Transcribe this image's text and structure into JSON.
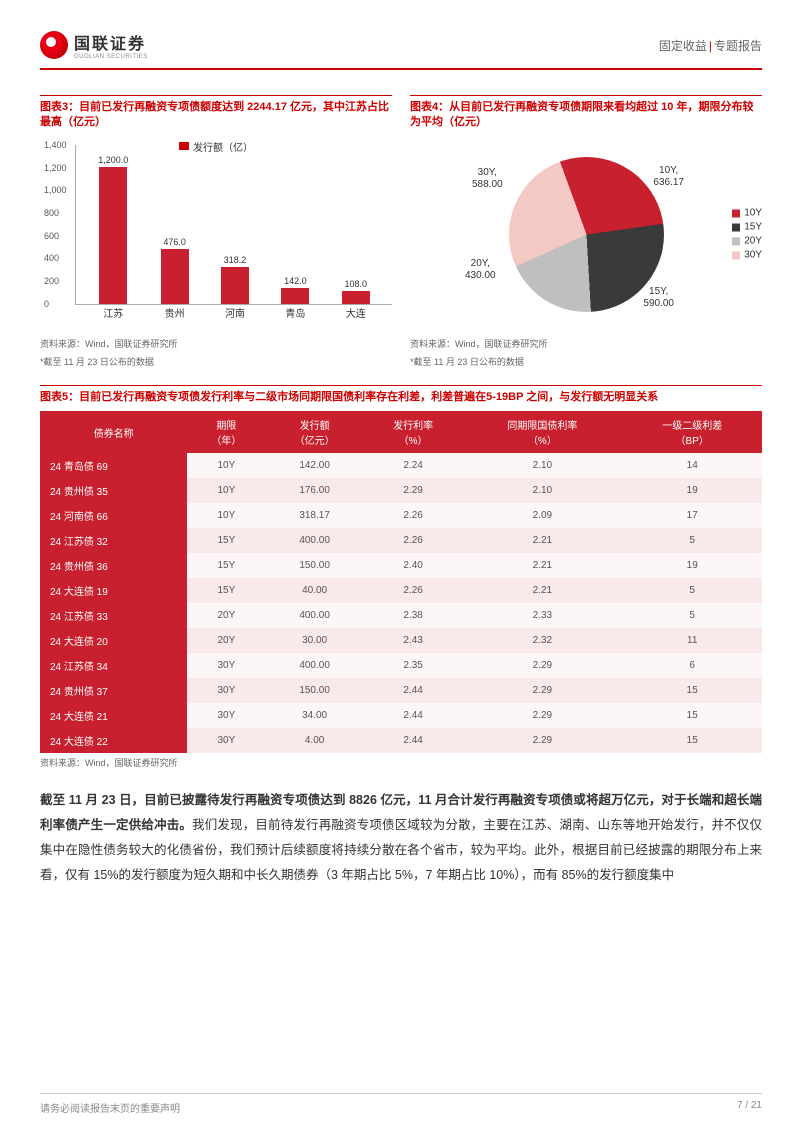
{
  "header": {
    "company_cn": "国联证券",
    "company_en": "GUOLIAN SECURITIES",
    "category1": "固定收益",
    "category2": "专题报告"
  },
  "chart3": {
    "title": "图表3：目前已发行再融资专项债额度达到 2244.17 亿元，其中江苏占比最高（亿元）",
    "legend": "发行额（亿）",
    "categories": [
      "江苏",
      "贵州",
      "河南",
      "青岛",
      "大连"
    ],
    "values": [
      1200.0,
      476.0,
      318.2,
      142.0,
      108.0
    ],
    "value_labels": [
      "1,200.0",
      "476.0",
      "318.2",
      "142.0",
      "108.0"
    ],
    "ylim": [
      0,
      1400
    ],
    "yticks": [
      0,
      200,
      400,
      600,
      800,
      1000,
      1200,
      1400
    ],
    "ytick_labels": [
      "0",
      "200",
      "400",
      "600",
      "800",
      "1,000",
      "1,200",
      "1,400"
    ],
    "bar_color": "#c8202f",
    "source": "资料来源：Wind，国联证券研究所",
    "note": "*截至 11 月 23 日公布的数据"
  },
  "chart4": {
    "title": "图表4：从目前已发行再融资专项债期限来看均超过 10 年，期限分布较为平均（亿元）",
    "slices": [
      {
        "label": "10Y",
        "value": "636.17",
        "color": "#c8202f"
      },
      {
        "label": "15Y",
        "value": "590.00",
        "color": "#3a3a3a"
      },
      {
        "label": "20Y",
        "value": "430.00",
        "color": "#bfbfbf"
      },
      {
        "label": "30Y",
        "value": "588.00",
        "color": "#f4c9c4"
      }
    ],
    "legend_items": [
      "10Y",
      "15Y",
      "20Y",
      "30Y"
    ],
    "source": "资料来源：Wind，国联证券研究所",
    "note": "*截至 11 月 23 日公布的数据"
  },
  "table5": {
    "title": "图表5：目前已发行再融资专项债发行利率与二级市场同期限国债利率存在利差，利差普遍在5-19BP 之间，与发行额无明显关系",
    "columns": [
      "债券名称",
      "期限\n（年）",
      "发行额\n（亿元）",
      "发行利率\n（%）",
      "同期限国债利率\n（%）",
      "一级二级利差\n（BP）"
    ],
    "rows": [
      [
        "24 青岛债 69",
        "10Y",
        "142.00",
        "2.24",
        "2.10",
        "14"
      ],
      [
        "24 贵州债 35",
        "10Y",
        "176.00",
        "2.29",
        "2.10",
        "19"
      ],
      [
        "24 河南债 66",
        "10Y",
        "318.17",
        "2.26",
        "2.09",
        "17"
      ],
      [
        "24 江苏债 32",
        "15Y",
        "400.00",
        "2.26",
        "2.21",
        "5"
      ],
      [
        "24 贵州债 36",
        "15Y",
        "150.00",
        "2.40",
        "2.21",
        "19"
      ],
      [
        "24 大连债 19",
        "15Y",
        "40.00",
        "2.26",
        "2.21",
        "5"
      ],
      [
        "24 江苏债 33",
        "20Y",
        "400.00",
        "2.38",
        "2.33",
        "5"
      ],
      [
        "24 大连债 20",
        "20Y",
        "30.00",
        "2.43",
        "2.32",
        "11"
      ],
      [
        "24 江苏债 34",
        "30Y",
        "400.00",
        "2.35",
        "2.29",
        "6"
      ],
      [
        "24 贵州债 37",
        "30Y",
        "150.00",
        "2.44",
        "2.29",
        "15"
      ],
      [
        "24 大连债 21",
        "30Y",
        "34.00",
        "2.44",
        "2.29",
        "15"
      ],
      [
        "24 大连债 22",
        "30Y",
        "4.00",
        "2.44",
        "2.29",
        "15"
      ]
    ],
    "source": "资料来源：Wind，国联证券研究所"
  },
  "body": {
    "bold": "截至 11 月 23 日，目前已披露待发行再融资专项债达到 8826 亿元，11 月合计发行再融资专项债或将超万亿元，对于长端和超长端利率债产生一定供给冲击。",
    "rest": "我们发现，目前待发行再融资专项债区域较为分散，主要在江苏、湖南、山东等地开始发行，并不仅仅集中在隐性债务较大的化债省份，我们预计后续额度将持续分散在各个省市，较为平均。此外，根据目前已经披露的期限分布上来看，仅有 15%的发行额度为短久期和中长久期债券（3 年期占比 5%，7 年期占比 10%），而有 85%的发行额度集中"
  },
  "footer": {
    "left": "请务必阅读报告末页的重要声明",
    "right": "7 / 21"
  }
}
